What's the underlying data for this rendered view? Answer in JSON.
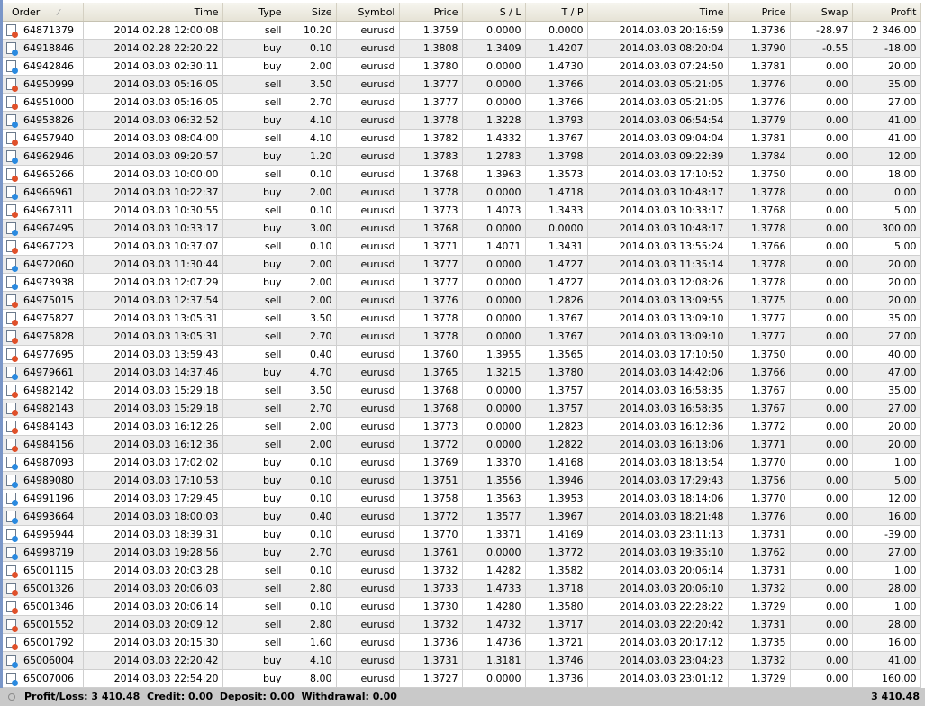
{
  "colors": {
    "sell": "#e0502a",
    "buy": "#2a8ae0"
  },
  "columns": [
    "Order",
    "Time",
    "Type",
    "Size",
    "Symbol",
    "Price",
    "S / L",
    "T / P",
    "Time",
    "Price",
    "Swap",
    "Profit"
  ],
  "sort_indicator": "⁄",
  "rows": [
    [
      "64871379",
      "2014.02.28 12:00:08",
      "sell",
      "10.20",
      "eurusd",
      "1.3759",
      "0.0000",
      "0.0000",
      "2014.03.03 20:16:59",
      "1.3736",
      "-28.97",
      "2 346.00"
    ],
    [
      "64918846",
      "2014.02.28 22:20:22",
      "buy",
      "0.10",
      "eurusd",
      "1.3808",
      "1.3409",
      "1.4207",
      "2014.03.03 08:20:04",
      "1.3790",
      "-0.55",
      "-18.00"
    ],
    [
      "64942846",
      "2014.03.03 02:30:11",
      "buy",
      "2.00",
      "eurusd",
      "1.3780",
      "0.0000",
      "1.4730",
      "2014.03.03 07:24:50",
      "1.3781",
      "0.00",
      "20.00"
    ],
    [
      "64950999",
      "2014.03.03 05:16:05",
      "sell",
      "3.50",
      "eurusd",
      "1.3777",
      "0.0000",
      "1.3766",
      "2014.03.03 05:21:05",
      "1.3776",
      "0.00",
      "35.00"
    ],
    [
      "64951000",
      "2014.03.03 05:16:05",
      "sell",
      "2.70",
      "eurusd",
      "1.3777",
      "0.0000",
      "1.3766",
      "2014.03.03 05:21:05",
      "1.3776",
      "0.00",
      "27.00"
    ],
    [
      "64953826",
      "2014.03.03 06:32:52",
      "buy",
      "4.10",
      "eurusd",
      "1.3778",
      "1.3228",
      "1.3793",
      "2014.03.03 06:54:54",
      "1.3779",
      "0.00",
      "41.00"
    ],
    [
      "64957940",
      "2014.03.03 08:04:00",
      "sell",
      "4.10",
      "eurusd",
      "1.3782",
      "1.4332",
      "1.3767",
      "2014.03.03 09:04:04",
      "1.3781",
      "0.00",
      "41.00"
    ],
    [
      "64962946",
      "2014.03.03 09:20:57",
      "buy",
      "1.20",
      "eurusd",
      "1.3783",
      "1.2783",
      "1.3798",
      "2014.03.03 09:22:39",
      "1.3784",
      "0.00",
      "12.00"
    ],
    [
      "64965266",
      "2014.03.03 10:00:00",
      "sell",
      "0.10",
      "eurusd",
      "1.3768",
      "1.3963",
      "1.3573",
      "2014.03.03 17:10:52",
      "1.3750",
      "0.00",
      "18.00"
    ],
    [
      "64966961",
      "2014.03.03 10:22:37",
      "buy",
      "2.00",
      "eurusd",
      "1.3778",
      "0.0000",
      "1.4718",
      "2014.03.03 10:48:17",
      "1.3778",
      "0.00",
      "0.00"
    ],
    [
      "64967311",
      "2014.03.03 10:30:55",
      "sell",
      "0.10",
      "eurusd",
      "1.3773",
      "1.4073",
      "1.3433",
      "2014.03.03 10:33:17",
      "1.3768",
      "0.00",
      "5.00"
    ],
    [
      "64967495",
      "2014.03.03 10:33:17",
      "buy",
      "3.00",
      "eurusd",
      "1.3768",
      "0.0000",
      "0.0000",
      "2014.03.03 10:48:17",
      "1.3778",
      "0.00",
      "300.00"
    ],
    [
      "64967723",
      "2014.03.03 10:37:07",
      "sell",
      "0.10",
      "eurusd",
      "1.3771",
      "1.4071",
      "1.3431",
      "2014.03.03 13:55:24",
      "1.3766",
      "0.00",
      "5.00"
    ],
    [
      "64972060",
      "2014.03.03 11:30:44",
      "buy",
      "2.00",
      "eurusd",
      "1.3777",
      "0.0000",
      "1.4727",
      "2014.03.03 11:35:14",
      "1.3778",
      "0.00",
      "20.00"
    ],
    [
      "64973938",
      "2014.03.03 12:07:29",
      "buy",
      "2.00",
      "eurusd",
      "1.3777",
      "0.0000",
      "1.4727",
      "2014.03.03 12:08:26",
      "1.3778",
      "0.00",
      "20.00"
    ],
    [
      "64975015",
      "2014.03.03 12:37:54",
      "sell",
      "2.00",
      "eurusd",
      "1.3776",
      "0.0000",
      "1.2826",
      "2014.03.03 13:09:55",
      "1.3775",
      "0.00",
      "20.00"
    ],
    [
      "64975827",
      "2014.03.03 13:05:31",
      "sell",
      "3.50",
      "eurusd",
      "1.3778",
      "0.0000",
      "1.3767",
      "2014.03.03 13:09:10",
      "1.3777",
      "0.00",
      "35.00"
    ],
    [
      "64975828",
      "2014.03.03 13:05:31",
      "sell",
      "2.70",
      "eurusd",
      "1.3778",
      "0.0000",
      "1.3767",
      "2014.03.03 13:09:10",
      "1.3777",
      "0.00",
      "27.00"
    ],
    [
      "64977695",
      "2014.03.03 13:59:43",
      "sell",
      "0.40",
      "eurusd",
      "1.3760",
      "1.3955",
      "1.3565",
      "2014.03.03 17:10:50",
      "1.3750",
      "0.00",
      "40.00"
    ],
    [
      "64979661",
      "2014.03.03 14:37:46",
      "buy",
      "4.70",
      "eurusd",
      "1.3765",
      "1.3215",
      "1.3780",
      "2014.03.03 14:42:06",
      "1.3766",
      "0.00",
      "47.00"
    ],
    [
      "64982142",
      "2014.03.03 15:29:18",
      "sell",
      "3.50",
      "eurusd",
      "1.3768",
      "0.0000",
      "1.3757",
      "2014.03.03 16:58:35",
      "1.3767",
      "0.00",
      "35.00"
    ],
    [
      "64982143",
      "2014.03.03 15:29:18",
      "sell",
      "2.70",
      "eurusd",
      "1.3768",
      "0.0000",
      "1.3757",
      "2014.03.03 16:58:35",
      "1.3767",
      "0.00",
      "27.00"
    ],
    [
      "64984143",
      "2014.03.03 16:12:26",
      "sell",
      "2.00",
      "eurusd",
      "1.3773",
      "0.0000",
      "1.2823",
      "2014.03.03 16:12:36",
      "1.3772",
      "0.00",
      "20.00"
    ],
    [
      "64984156",
      "2014.03.03 16:12:36",
      "sell",
      "2.00",
      "eurusd",
      "1.3772",
      "0.0000",
      "1.2822",
      "2014.03.03 16:13:06",
      "1.3771",
      "0.00",
      "20.00"
    ],
    [
      "64987093",
      "2014.03.03 17:02:02",
      "buy",
      "0.10",
      "eurusd",
      "1.3769",
      "1.3370",
      "1.4168",
      "2014.03.03 18:13:54",
      "1.3770",
      "0.00",
      "1.00"
    ],
    [
      "64989080",
      "2014.03.03 17:10:53",
      "buy",
      "0.10",
      "eurusd",
      "1.3751",
      "1.3556",
      "1.3946",
      "2014.03.03 17:29:43",
      "1.3756",
      "0.00",
      "5.00"
    ],
    [
      "64991196",
      "2014.03.03 17:29:45",
      "buy",
      "0.10",
      "eurusd",
      "1.3758",
      "1.3563",
      "1.3953",
      "2014.03.03 18:14:06",
      "1.3770",
      "0.00",
      "12.00"
    ],
    [
      "64993664",
      "2014.03.03 18:00:03",
      "buy",
      "0.40",
      "eurusd",
      "1.3772",
      "1.3577",
      "1.3967",
      "2014.03.03 18:21:48",
      "1.3776",
      "0.00",
      "16.00"
    ],
    [
      "64995944",
      "2014.03.03 18:39:31",
      "buy",
      "0.10",
      "eurusd",
      "1.3770",
      "1.3371",
      "1.4169",
      "2014.03.03 23:11:13",
      "1.3731",
      "0.00",
      "-39.00"
    ],
    [
      "64998719",
      "2014.03.03 19:28:56",
      "buy",
      "2.70",
      "eurusd",
      "1.3761",
      "0.0000",
      "1.3772",
      "2014.03.03 19:35:10",
      "1.3762",
      "0.00",
      "27.00"
    ],
    [
      "65001115",
      "2014.03.03 20:03:28",
      "sell",
      "0.10",
      "eurusd",
      "1.3732",
      "1.4282",
      "1.3582",
      "2014.03.03 20:06:14",
      "1.3731",
      "0.00",
      "1.00"
    ],
    [
      "65001326",
      "2014.03.03 20:06:03",
      "sell",
      "2.80",
      "eurusd",
      "1.3733",
      "1.4733",
      "1.3718",
      "2014.03.03 20:06:10",
      "1.3732",
      "0.00",
      "28.00"
    ],
    [
      "65001346",
      "2014.03.03 20:06:14",
      "sell",
      "0.10",
      "eurusd",
      "1.3730",
      "1.4280",
      "1.3580",
      "2014.03.03 22:28:22",
      "1.3729",
      "0.00",
      "1.00"
    ],
    [
      "65001552",
      "2014.03.03 20:09:12",
      "sell",
      "2.80",
      "eurusd",
      "1.3732",
      "1.4732",
      "1.3717",
      "2014.03.03 22:20:42",
      "1.3731",
      "0.00",
      "28.00"
    ],
    [
      "65001792",
      "2014.03.03 20:15:30",
      "sell",
      "1.60",
      "eurusd",
      "1.3736",
      "1.4736",
      "1.3721",
      "2014.03.03 20:17:12",
      "1.3735",
      "0.00",
      "16.00"
    ],
    [
      "65006004",
      "2014.03.03 22:20:42",
      "buy",
      "4.10",
      "eurusd",
      "1.3731",
      "1.3181",
      "1.3746",
      "2014.03.03 23:04:23",
      "1.3732",
      "0.00",
      "41.00"
    ],
    [
      "65007006",
      "2014.03.03 22:54:20",
      "buy",
      "8.00",
      "eurusd",
      "1.3727",
      "0.0000",
      "1.3736",
      "2014.03.03 23:01:12",
      "1.3729",
      "0.00",
      "160.00"
    ]
  ],
  "summary": {
    "text": "Profit/Loss: 3 410.48  Credit: 0.00  Deposit: 0.00  Withdrawal: 0.00",
    "total": "3 410.48"
  }
}
